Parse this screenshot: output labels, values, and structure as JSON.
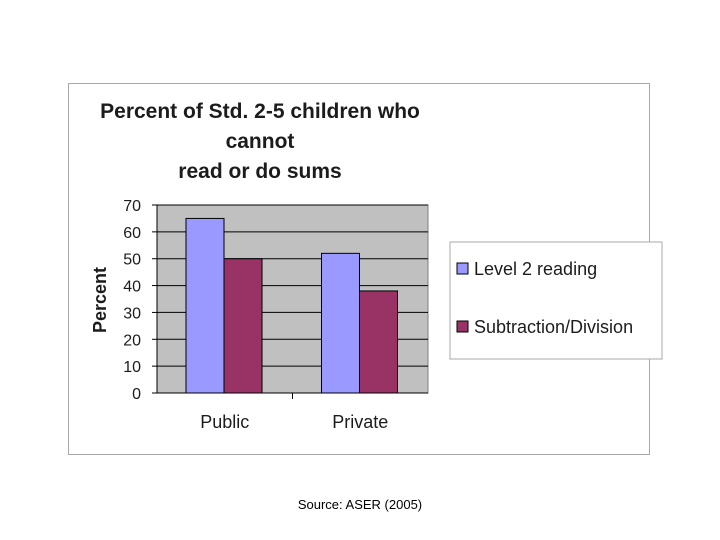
{
  "chart_data": {
    "type": "bar",
    "title": "Percent of  Std. 2-5 children who cannot\nread or do sums",
    "xlabel": "",
    "ylabel": "Percent",
    "categories": [
      "Public",
      "Private"
    ],
    "series": [
      {
        "name": "Level 2 reading",
        "values": [
          65,
          52
        ],
        "color": "#9999ff"
      },
      {
        "name": "Subtraction/Division",
        "values": [
          50,
          38
        ],
        "color": "#993366"
      }
    ],
    "ylim": [
      0,
      70
    ],
    "yticks": [
      "0",
      "10",
      "20",
      "30",
      "40",
      "50",
      "60",
      "70"
    ],
    "grid": true,
    "plot_background": "#c0c0c0",
    "legend_position": "right"
  },
  "source": "Source:  ASER (2005)"
}
